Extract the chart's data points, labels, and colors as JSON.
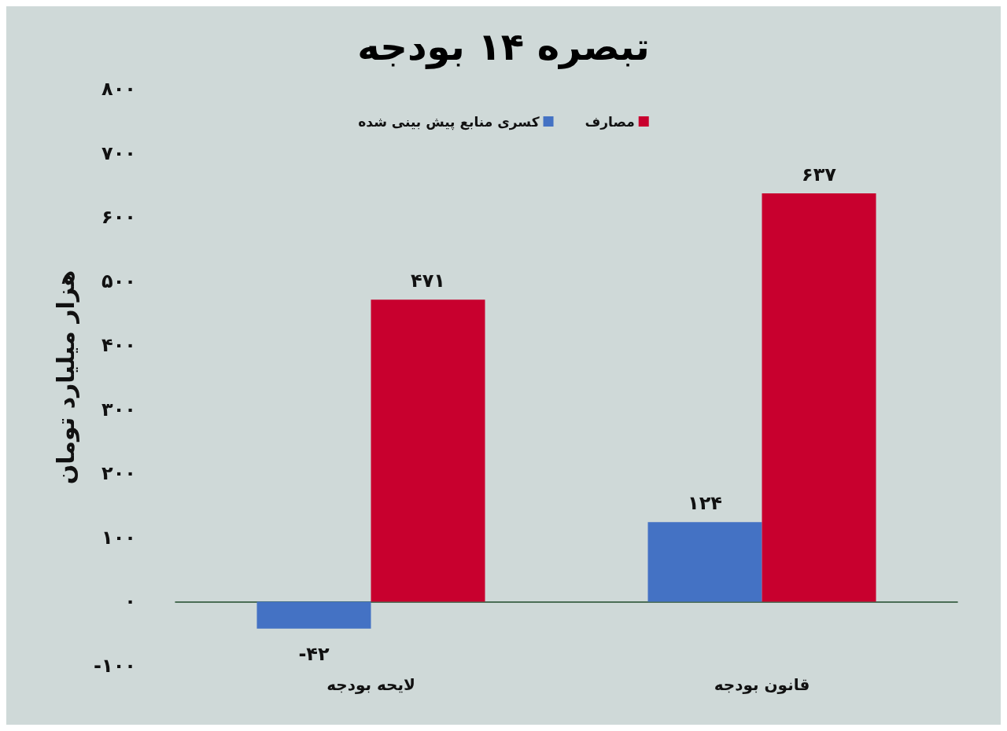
{
  "chart_data": {
    "type": "bar",
    "title": "تبصره ۱۴ بودجه",
    "ylabel": "هزار میلیارد تومان",
    "categories": [
      "لایحه بودجه",
      "قانون بودجه"
    ],
    "series": [
      {
        "name": "کسری منابع پیش بینی شده",
        "color": "#4472c4",
        "values": [
          -42,
          124
        ],
        "value_labels": [
          "-۴۲",
          "۱۲۴"
        ]
      },
      {
        "name": "مصارف",
        "color": "#c8002e",
        "values": [
          471,
          637
        ],
        "value_labels": [
          "۴۷۱",
          "۶۳۷"
        ]
      }
    ],
    "ylim": [
      -100,
      800
    ],
    "yticks": [
      {
        "value": -100,
        "label": "-۱۰۰"
      },
      {
        "value": 0,
        "label": "۰"
      },
      {
        "value": 100,
        "label": "۱۰۰"
      },
      {
        "value": 200,
        "label": "۲۰۰"
      },
      {
        "value": 300,
        "label": "۳۰۰"
      },
      {
        "value": 400,
        "label": "۴۰۰"
      },
      {
        "value": 500,
        "label": "۵۰۰"
      },
      {
        "value": 600,
        "label": "۶۰۰"
      },
      {
        "value": 700,
        "label": "۷۰۰"
      },
      {
        "value": 800,
        "label": "۸۰۰"
      }
    ],
    "grid": false,
    "legend": "top"
  }
}
